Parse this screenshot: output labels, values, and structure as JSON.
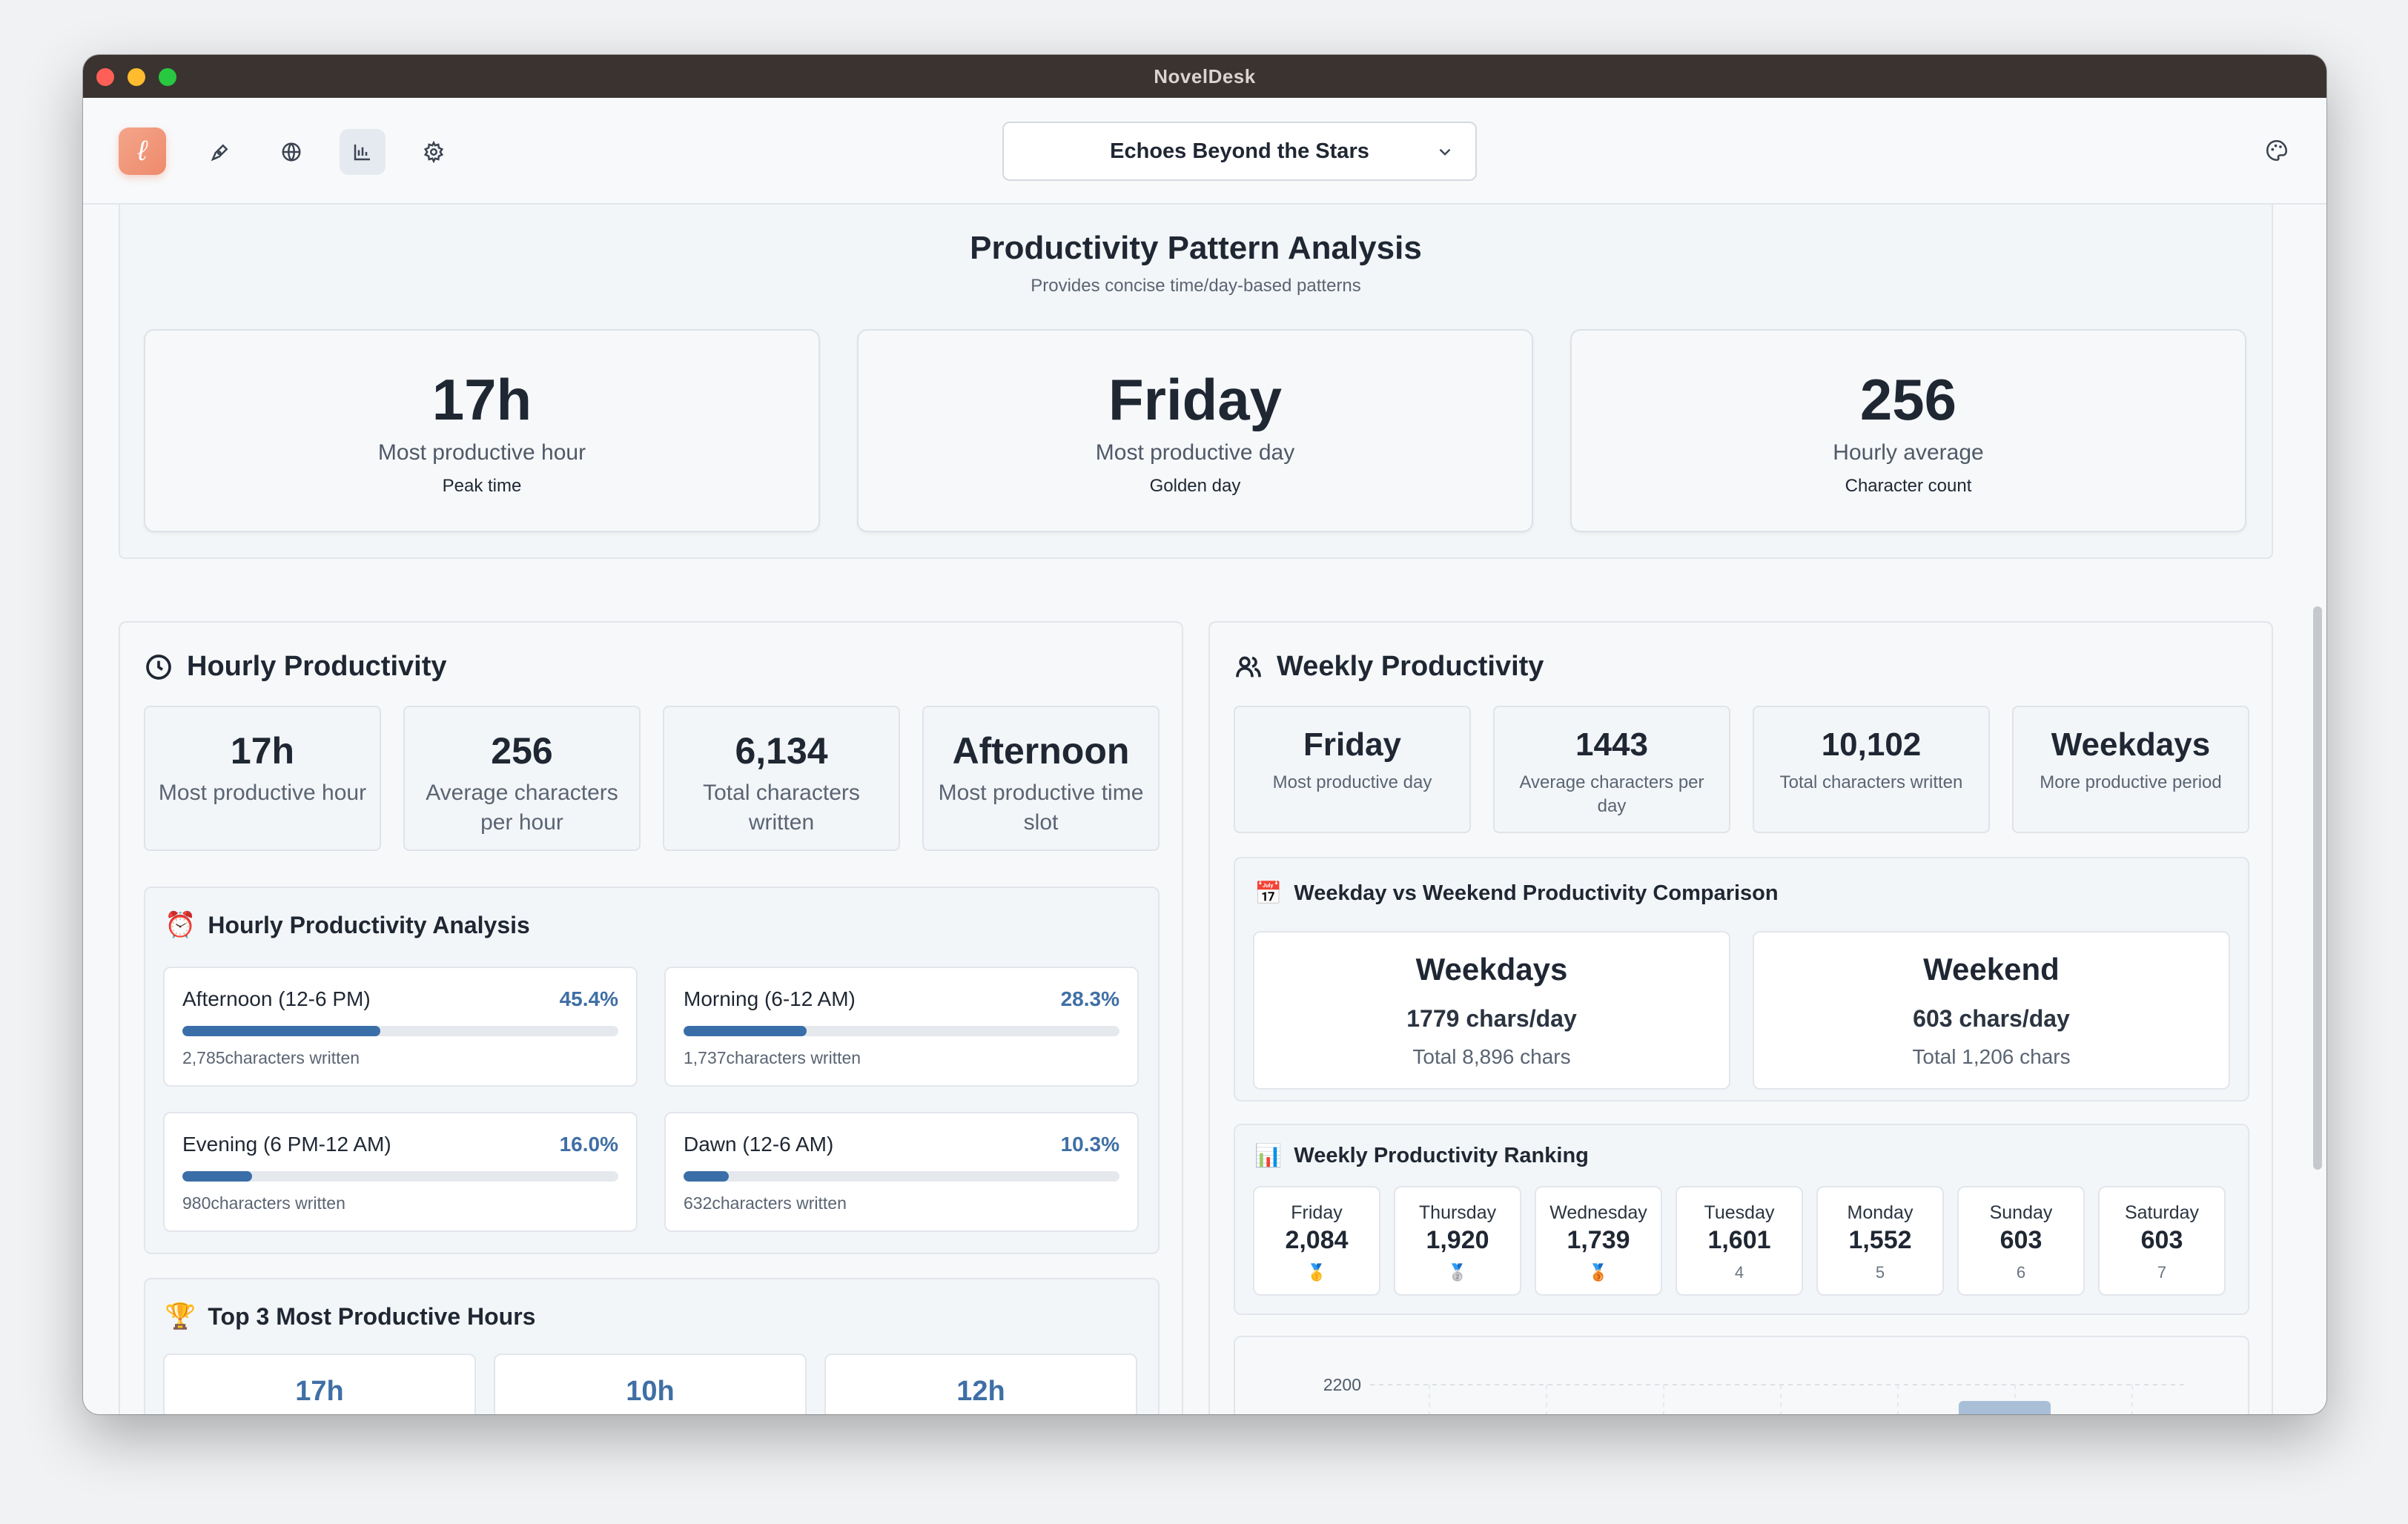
{
  "window": {
    "title": "NovelDesk"
  },
  "toolbar": {
    "logo_glyph": "ℓ",
    "nav": [
      {
        "icon": "pen-nib-icon",
        "label": "Write"
      },
      {
        "icon": "globe-icon",
        "label": "World"
      },
      {
        "icon": "bar-chart-icon",
        "label": "Statistics",
        "active": true
      },
      {
        "icon": "gear-icon",
        "label": "Settings"
      }
    ],
    "project": "Echoes Beyond the Stars"
  },
  "pattern": {
    "title": "Productivity Pattern Analysis",
    "subtitle": "Provides concise time/day-based patterns",
    "cards": [
      {
        "value": "17h",
        "label": "Most productive hour",
        "sub": "Peak time"
      },
      {
        "value": "Friday",
        "label": "Most productive day",
        "sub": "Golden day"
      },
      {
        "value": "256",
        "label": "Hourly average",
        "sub": "Character count"
      }
    ]
  },
  "hourly": {
    "title": "Hourly Productivity",
    "stats": [
      {
        "value": "17h",
        "label": "Most productive hour"
      },
      {
        "value": "256",
        "label": "Average characters per hour"
      },
      {
        "value": "6,134",
        "label": "Total characters written"
      },
      {
        "value": "Afternoon",
        "label": "Most productive time slot"
      }
    ],
    "analysis": {
      "title": "Hourly Productivity Analysis",
      "emoji": "⏰",
      "slots": [
        {
          "name": "Afternoon (12-6 PM)",
          "pct": "45.4%",
          "fraction": 0.454,
          "chars": "2,785characters written"
        },
        {
          "name": "Morning (6-12 AM)",
          "pct": "28.3%",
          "fraction": 0.283,
          "chars": "1,737characters written"
        },
        {
          "name": "Evening (6 PM-12 AM)",
          "pct": "16.0%",
          "fraction": 0.16,
          "chars": "980characters written"
        },
        {
          "name": "Dawn (12-6 AM)",
          "pct": "10.3%",
          "fraction": 0.103,
          "chars": "632characters written"
        }
      ]
    },
    "top3": {
      "title": "Top 3 Most Productive Hours",
      "emoji": "🏆",
      "hours": [
        "17h",
        "10h",
        "12h"
      ]
    }
  },
  "weekly": {
    "title": "Weekly Productivity",
    "stats": [
      {
        "value": "Friday",
        "label": "Most productive day"
      },
      {
        "value": "1443",
        "label": "Average characters per day"
      },
      {
        "value": "10,102",
        "label": "Total characters written"
      },
      {
        "value": "Weekdays",
        "label": "More productive period"
      }
    ],
    "comparison": {
      "title": "Weekday vs Weekend Productivity Comparison",
      "emoji": "📅",
      "weekdays": {
        "title": "Weekdays",
        "rate": "1779 chars/day",
        "total": "Total 8,896 chars"
      },
      "weekend": {
        "title": "Weekend",
        "rate": "603 chars/day",
        "total": "Total 1,206 chars"
      }
    },
    "ranking": {
      "title": "Weekly Productivity Ranking",
      "emoji": "📊",
      "days": [
        {
          "day": "Friday",
          "value": "2,084",
          "rank": "🥇"
        },
        {
          "day": "Thursday",
          "value": "1,920",
          "rank": "🥈"
        },
        {
          "day": "Wednesday",
          "value": "1,739",
          "rank": "🥉"
        },
        {
          "day": "Tuesday",
          "value": "1,601",
          "rank": "4"
        },
        {
          "day": "Monday",
          "value": "1,552",
          "rank": "5"
        },
        {
          "day": "Sunday",
          "value": "603",
          "rank": "6"
        },
        {
          "day": "Saturday",
          "value": "603",
          "rank": "7"
        }
      ]
    },
    "chart": {
      "y_tick_top": "2200"
    }
  }
}
